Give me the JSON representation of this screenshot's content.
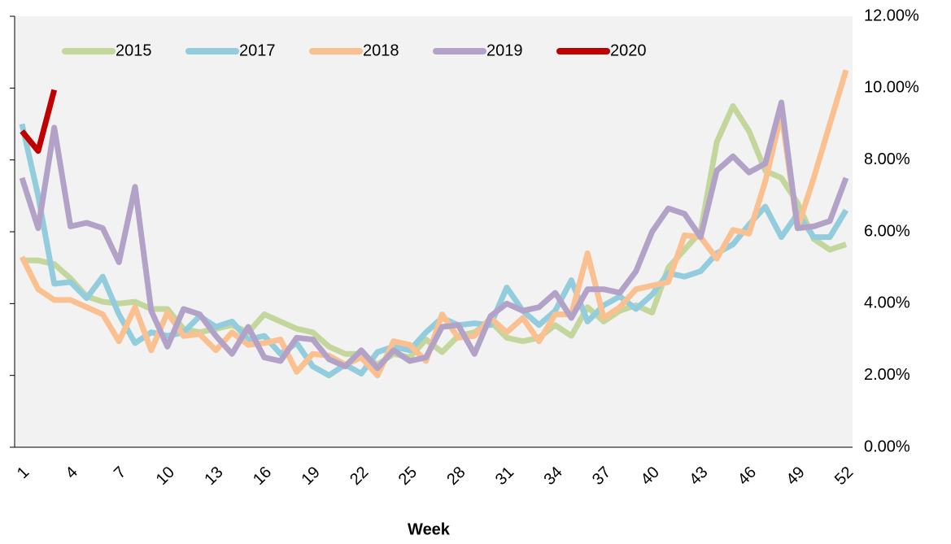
{
  "chart_data": {
    "type": "line",
    "x_label": "Week",
    "categories": [
      "1",
      null,
      null,
      "4",
      null,
      null,
      "7",
      null,
      null,
      "10",
      null,
      null,
      "13",
      null,
      null,
      "16",
      null,
      null,
      "19",
      null,
      null,
      "22",
      null,
      null,
      "25",
      null,
      null,
      "28",
      null,
      null,
      "31",
      null,
      null,
      "34",
      null,
      null,
      "37",
      null,
      null,
      "40",
      null,
      null,
      "43",
      null,
      null,
      "46",
      null,
      null,
      "49",
      null,
      null,
      "52"
    ],
    "ylim": [
      0,
      12
    ],
    "yticks": [
      {
        "value": 0,
        "label": "0.00%"
      },
      {
        "value": 2,
        "label": "2.00%"
      },
      {
        "value": 4,
        "label": "4.00%"
      },
      {
        "value": 6,
        "label": "6.00%"
      },
      {
        "value": 8,
        "label": "8.00%"
      },
      {
        "value": 10,
        "label": "10.00%"
      },
      {
        "value": 12,
        "label": "12.00%"
      }
    ],
    "legend": "top-left",
    "series": [
      {
        "name": "2015",
        "color": "#c3d69b",
        "values": [
          5.2,
          5.2,
          5.1,
          4.7,
          4.2,
          4.05,
          4.0,
          4.05,
          3.85,
          3.85,
          3.3,
          3.2,
          3.3,
          3.4,
          3.2,
          3.7,
          3.5,
          3.3,
          3.2,
          2.8,
          2.6,
          2.6,
          2.3,
          2.6,
          2.5,
          3.0,
          2.65,
          3.1,
          3.2,
          3.5,
          3.05,
          2.95,
          3.05,
          3.4,
          3.1,
          3.9,
          3.5,
          3.8,
          3.95,
          3.75,
          5.0,
          5.5,
          6.0,
          8.5,
          9.5,
          8.8,
          7.7,
          7.5,
          6.8,
          5.8,
          5.5,
          5.65
        ]
      },
      {
        "name": "2017",
        "color": "#93cddd",
        "values": [
          9.0,
          7.0,
          4.55,
          4.6,
          4.15,
          4.75,
          3.7,
          2.9,
          3.2,
          3.1,
          3.2,
          3.65,
          3.35,
          3.5,
          3.0,
          3.1,
          2.6,
          2.9,
          2.25,
          2.0,
          2.3,
          2.05,
          2.65,
          2.8,
          2.7,
          3.2,
          3.6,
          3.4,
          3.45,
          3.4,
          4.45,
          3.8,
          3.4,
          3.8,
          4.65,
          3.5,
          3.95,
          4.2,
          3.85,
          4.25,
          4.85,
          4.75,
          4.9,
          5.4,
          5.65,
          6.2,
          6.7,
          5.85,
          6.5,
          5.85,
          5.85,
          6.6
        ]
      },
      {
        "name": "2018",
        "color": "#fac090",
        "values": [
          5.3,
          4.4,
          4.1,
          4.1,
          3.9,
          3.7,
          2.95,
          3.9,
          2.7,
          3.75,
          3.1,
          3.15,
          2.7,
          3.2,
          2.85,
          2.9,
          3.0,
          2.1,
          2.6,
          2.55,
          2.3,
          2.5,
          2.0,
          2.95,
          2.85,
          2.4,
          3.7,
          3.05,
          3.1,
          3.6,
          3.2,
          3.6,
          2.95,
          3.7,
          3.7,
          5.4,
          3.6,
          3.9,
          4.4,
          4.5,
          4.6,
          5.9,
          5.85,
          5.25,
          6.05,
          5.95,
          7.4,
          9.3,
          6.1,
          7.5,
          9.0,
          10.5
        ]
      },
      {
        "name": "2019",
        "color": "#b3a2c7",
        "values": [
          7.5,
          6.1,
          8.9,
          6.15,
          6.25,
          6.1,
          5.15,
          7.25,
          3.8,
          2.8,
          3.85,
          3.7,
          3.1,
          2.6,
          3.35,
          2.5,
          2.4,
          3.05,
          3.0,
          2.45,
          2.25,
          2.7,
          2.2,
          2.7,
          2.4,
          2.5,
          3.35,
          3.4,
          2.6,
          3.65,
          4.0,
          3.8,
          3.9,
          4.3,
          3.6,
          4.4,
          4.4,
          4.3,
          4.9,
          6.0,
          6.65,
          6.5,
          5.85,
          7.7,
          8.1,
          7.65,
          7.9,
          9.6,
          6.1,
          6.15,
          6.3,
          7.5
        ]
      },
      {
        "name": "2020",
        "color": "#c00000",
        "values": [
          8.8,
          8.25,
          9.95,
          null,
          null,
          null,
          null,
          null,
          null,
          null,
          null,
          null,
          null,
          null,
          null,
          null,
          null,
          null,
          null,
          null,
          null,
          null,
          null,
          null,
          null,
          null,
          null,
          null,
          null,
          null,
          null,
          null,
          null,
          null,
          null,
          null,
          null,
          null,
          null,
          null,
          null,
          null,
          null,
          null,
          null,
          null,
          null,
          null,
          null,
          null,
          null,
          null
        ]
      }
    ]
  }
}
